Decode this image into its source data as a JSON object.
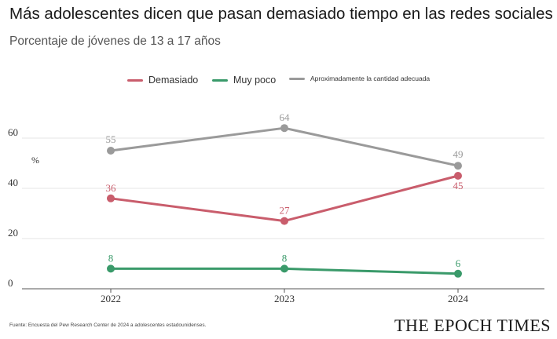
{
  "title": "Más adolescentes dicen que pasan demasiado tiempo en las redes sociales",
  "subtitle": "Porcentaje de jóvenes de 13 a 17 años",
  "source": "Fuente: Encuesta del Pew Research Center de 2024 a adolescentes estadounidenses.",
  "brand": "THE EPOCH TIMES",
  "chart_data": {
    "type": "line",
    "x": [
      "2022",
      "2023",
      "2024"
    ],
    "ylim": [
      0,
      70
    ],
    "yticks": [
      0,
      20,
      40,
      60
    ],
    "y_unit": "%",
    "grid": true,
    "legend_position": "top-center",
    "series": [
      {
        "name": "Demasiado",
        "color": "#c95d6c",
        "values": [
          36,
          27,
          45
        ]
      },
      {
        "name": "Muy poco",
        "color": "#3a9a6a",
        "values": [
          8,
          8,
          6
        ]
      },
      {
        "name": "Aproximadamente la cantidad adecuada",
        "color": "#9a9a9a",
        "values": [
          55,
          64,
          49
        ]
      }
    ]
  }
}
